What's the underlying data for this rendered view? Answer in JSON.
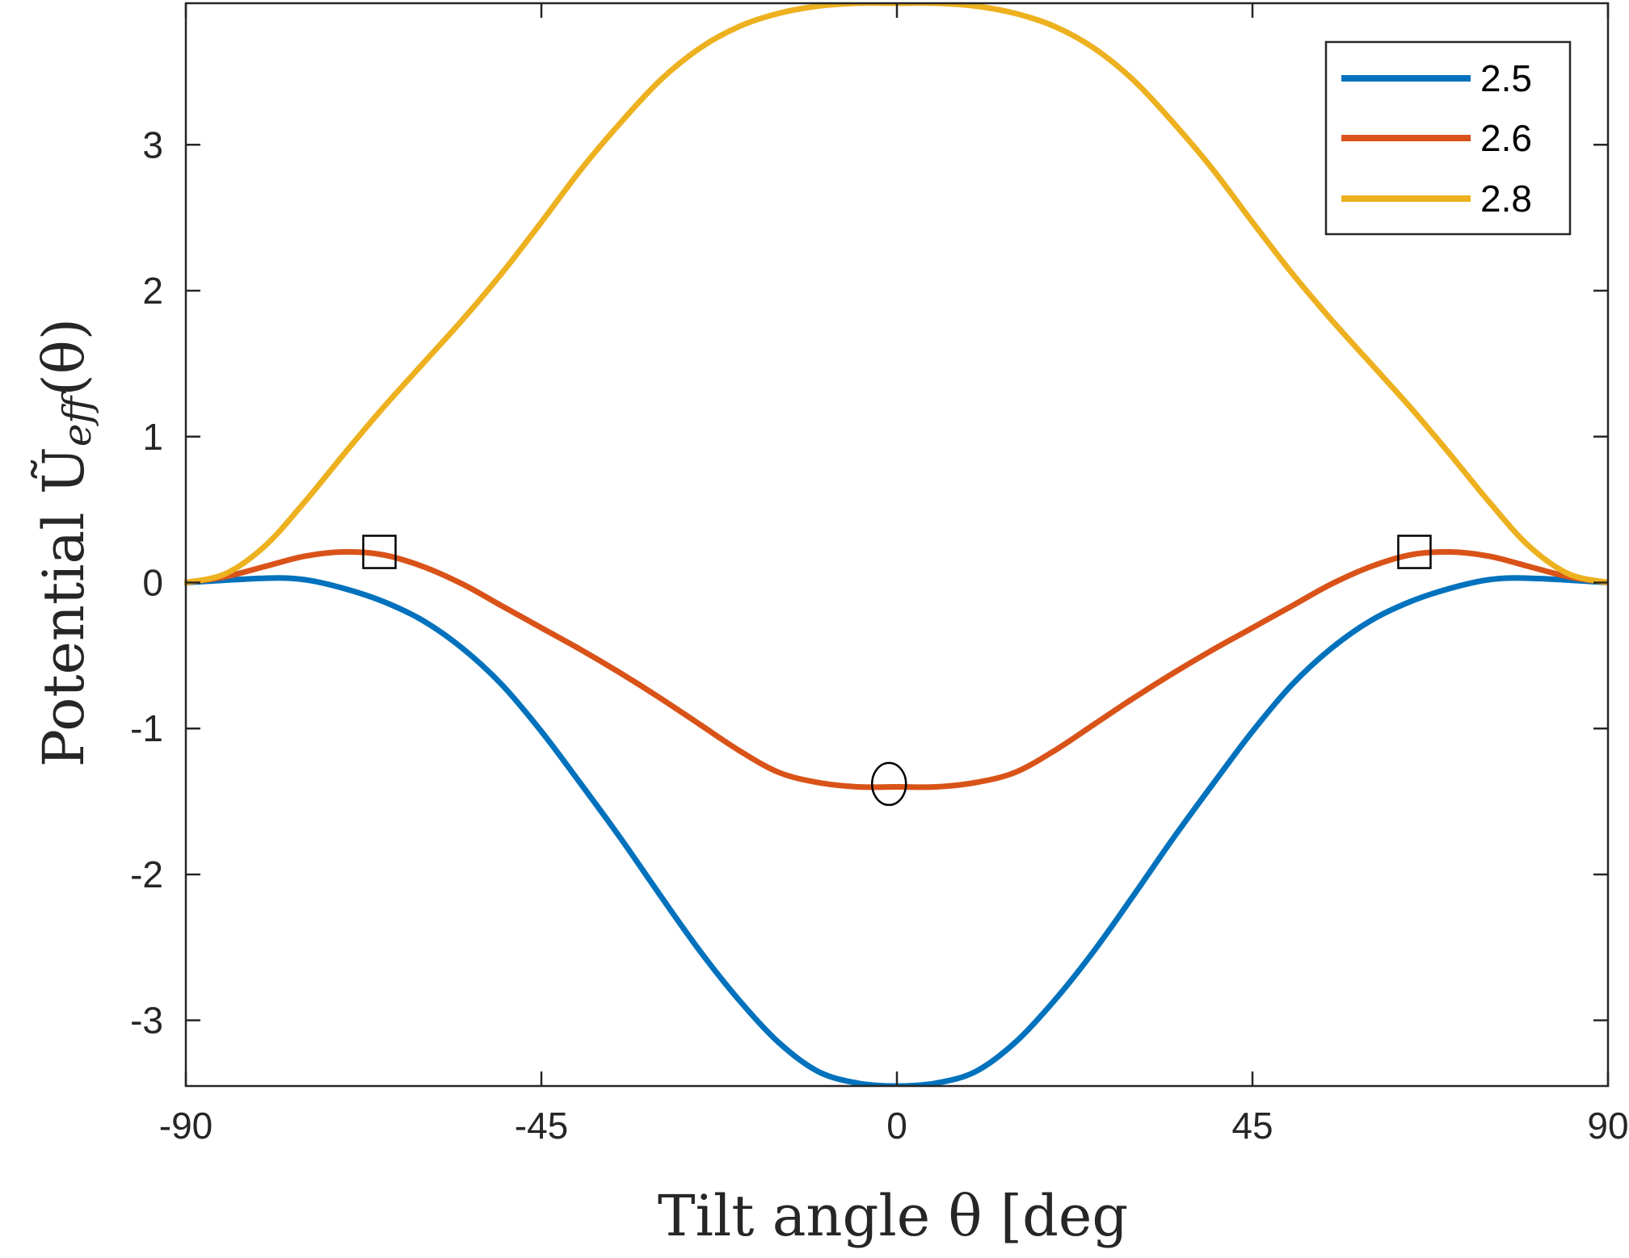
{
  "chart_data": {
    "type": "line",
    "xlabel": "Tilt angle θ [deg",
    "ylabel": "Potential Ũ",
    "ylabel_subscript": "eff",
    "ylabel_arg": "(θ)",
    "xlim": [
      -90,
      90
    ],
    "ylim": [
      -3.45,
      3.97
    ],
    "xticks": [
      "-90",
      "-45",
      "0",
      "45",
      "90"
    ],
    "yticks": [
      "-3",
      "-2",
      "-1",
      "0",
      "1",
      "2",
      "3"
    ],
    "grid": false,
    "legend": {
      "position": "top-right",
      "entries": [
        "2.5",
        "2.6",
        "2.8"
      ]
    },
    "colors": {
      "2.5": "#0072BD",
      "2.6": "#D95319",
      "2.8": "#EDB120",
      "axis": "#262626"
    },
    "series": [
      {
        "name": "2.5",
        "x": [
          -90,
          -80,
          -75,
          -70,
          -65,
          -60,
          -55,
          -50,
          -45,
          -40,
          -35,
          -30,
          -25,
          -20,
          -15,
          -10,
          -5,
          0,
          5,
          10,
          15,
          20,
          25,
          30,
          35,
          40,
          45,
          50,
          55,
          60,
          65,
          70,
          75,
          80,
          90
        ],
        "y": [
          0,
          0.03,
          0.02,
          -0.04,
          -0.13,
          -0.26,
          -0.45,
          -0.7,
          -1.02,
          -1.38,
          -1.75,
          -2.14,
          -2.52,
          -2.86,
          -3.15,
          -3.35,
          -3.43,
          -3.45,
          -3.43,
          -3.35,
          -3.15,
          -2.86,
          -2.52,
          -2.14,
          -1.75,
          -1.38,
          -1.02,
          -0.7,
          -0.45,
          -0.26,
          -0.13,
          -0.04,
          0.02,
          0.03,
          0
        ]
      },
      {
        "name": "2.6",
        "x": [
          -90,
          -85,
          -80,
          -75,
          -70,
          -65,
          -60,
          -55,
          -50,
          -45,
          -40,
          -35,
          -30,
          -25,
          -20,
          -15,
          -10,
          -5,
          0,
          5,
          10,
          15,
          20,
          25,
          30,
          35,
          40,
          45,
          50,
          55,
          60,
          65,
          70,
          75,
          80,
          85,
          90
        ],
        "y": [
          0,
          0.04,
          0.11,
          0.18,
          0.21,
          0.19,
          0.11,
          -0.01,
          -0.16,
          -0.31,
          -0.46,
          -0.62,
          -0.79,
          -0.97,
          -1.15,
          -1.3,
          -1.37,
          -1.4,
          -1.4,
          -1.4,
          -1.37,
          -1.3,
          -1.15,
          -0.97,
          -0.79,
          -0.62,
          -0.46,
          -0.31,
          -0.16,
          -0.01,
          0.11,
          0.19,
          0.21,
          0.18,
          0.11,
          0.04,
          0
        ]
      },
      {
        "name": "2.8",
        "x": [
          -90,
          -85,
          -80,
          -75,
          -70,
          -65,
          -60,
          -55,
          -50,
          -45,
          -40,
          -35,
          -30,
          -25,
          -20,
          -15,
          -10,
          -5,
          0,
          5,
          10,
          15,
          20,
          25,
          30,
          35,
          40,
          45,
          50,
          55,
          60,
          65,
          70,
          75,
          80,
          85,
          90
        ],
        "y": [
          0,
          0.06,
          0.25,
          0.55,
          0.88,
          1.2,
          1.5,
          1.8,
          2.12,
          2.47,
          2.83,
          3.15,
          3.44,
          3.66,
          3.81,
          3.9,
          3.95,
          3.97,
          3.97,
          3.97,
          3.95,
          3.9,
          3.81,
          3.66,
          3.44,
          3.15,
          2.83,
          2.47,
          2.12,
          1.8,
          1.5,
          1.2,
          0.88,
          0.55,
          0.25,
          0.06,
          0
        ]
      }
    ],
    "markers": [
      {
        "shape": "square",
        "x": -65.5,
        "y": 0.21
      },
      {
        "shape": "square",
        "x": 65.5,
        "y": 0.21
      },
      {
        "shape": "circle",
        "x": -1,
        "y": -1.38
      }
    ]
  }
}
